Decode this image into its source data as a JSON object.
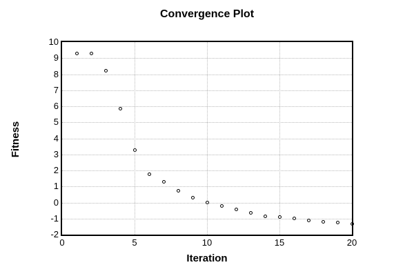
{
  "page": {
    "background": "#ffffff"
  },
  "chart_data": {
    "type": "scatter",
    "title": "Convergence Plot",
    "xlabel": "Iteration",
    "ylabel": "Fitness",
    "xlim": [
      0,
      20
    ],
    "ylim": [
      -2,
      10
    ],
    "x_ticks": [
      0,
      5,
      10,
      15,
      20
    ],
    "y_ticks": [
      -2,
      -1,
      0,
      1,
      2,
      3,
      4,
      5,
      6,
      7,
      8,
      9,
      10
    ],
    "grid": true,
    "legend": "none",
    "marker": "open-circle",
    "series": [
      {
        "name": "fitness",
        "x": [
          1,
          2,
          3,
          4,
          5,
          6,
          7,
          8,
          9,
          10,
          11,
          12,
          13,
          14,
          15,
          16,
          17,
          18,
          19,
          20
        ],
        "y": [
          9.3,
          9.3,
          8.2,
          5.85,
          3.25,
          1.75,
          1.3,
          0.75,
          0.3,
          0.0,
          -0.2,
          -0.45,
          -0.65,
          -0.85,
          -0.9,
          -1.0,
          -1.1,
          -1.2,
          -1.25,
          -1.35
        ]
      }
    ],
    "colors": {
      "marker_stroke": "#000000",
      "marker_fill": "#ffffff",
      "grid": "#b9b9b9",
      "axis": "#000000",
      "text": "#000000",
      "background": "#ffffff"
    }
  }
}
